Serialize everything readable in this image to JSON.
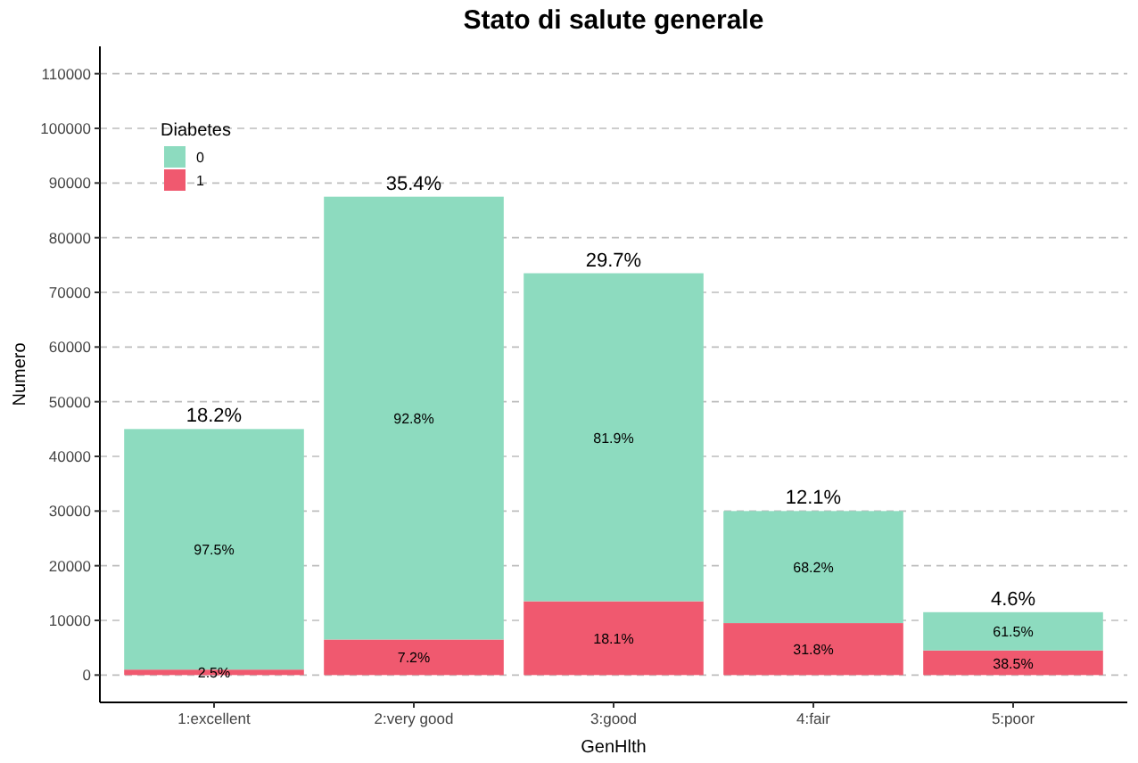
{
  "chart_data": {
    "type": "bar",
    "title": "Stato di salute generale",
    "xlabel": "GenHlth",
    "ylabel": "Numero",
    "legend_title": "Diabetes",
    "categories": [
      "1:excellent",
      "2:very good",
      "3:good",
      "4:fair",
      "5:poor"
    ],
    "stacked": true,
    "series": [
      {
        "name": "1",
        "color": "#f0596f",
        "values": [
          1000,
          6500,
          13500,
          9500,
          4500
        ]
      },
      {
        "name": "0",
        "color": "#8ddbbf",
        "values": [
          44000,
          81000,
          60000,
          20500,
          7000
        ]
      }
    ],
    "annotations": [
      "2.5%",
      "7.2%",
      "18.1%",
      "31.8%",
      "38.5%",
      "97.5%",
      "92.8%",
      "81.9%",
      "68.2%",
      "61.5%",
      "18.2%",
      "35.4%",
      "29.7%",
      "12.1%",
      "4.6%"
    ],
    "ylim": [
      -5000,
      115000
    ],
    "yticks": [
      0,
      10000,
      20000,
      30000,
      40000,
      50000,
      60000,
      70000,
      80000,
      90000,
      100000,
      110000
    ],
    "grid": "y",
    "legend": "top left"
  }
}
